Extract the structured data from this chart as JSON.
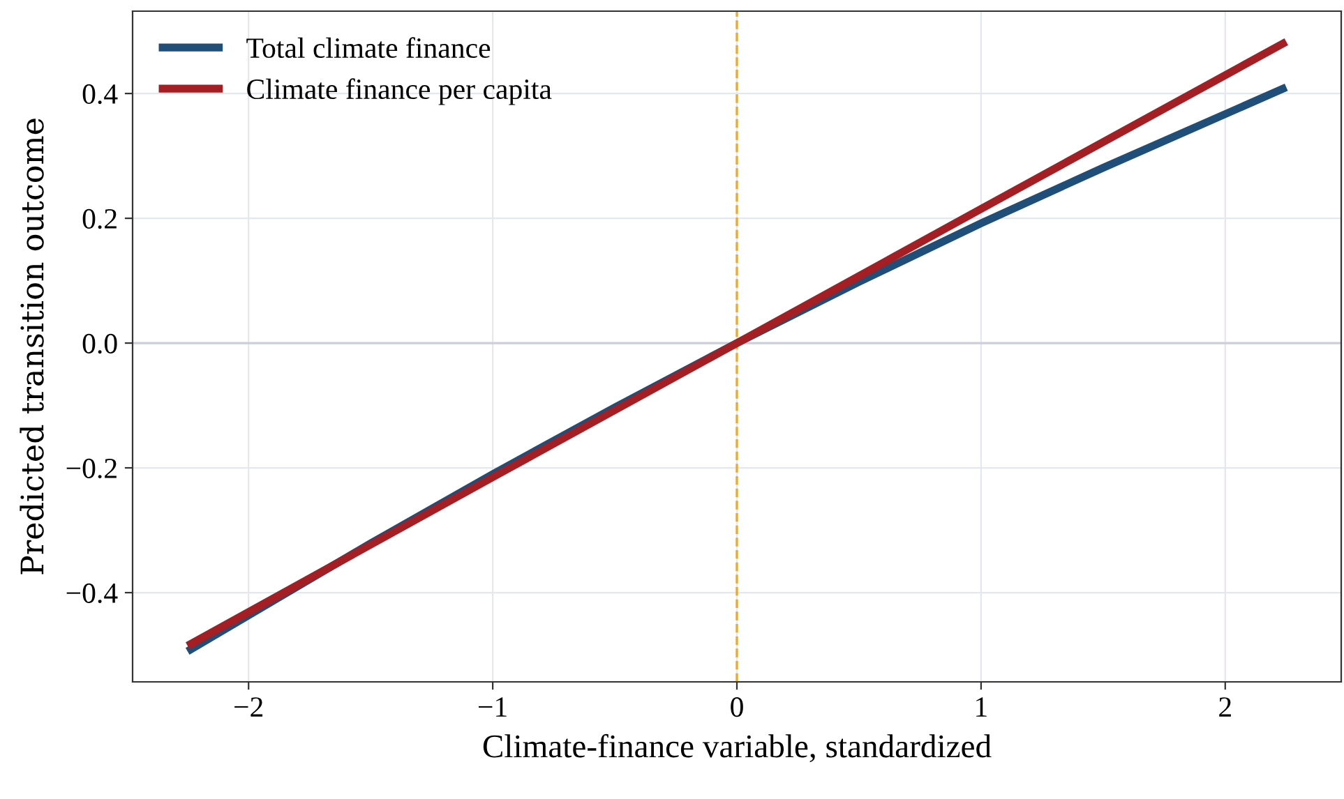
{
  "chart_data": {
    "type": "line",
    "xlabel": "Climate-finance variable, standardized",
    "ylabel": "Predicted transition outcome",
    "xlim": [
      -2.475,
      2.475
    ],
    "xticks": [
      {
        "value": -2,
        "label": "−2"
      },
      {
        "value": -1,
        "label": "−1"
      },
      0,
      1,
      2
    ],
    "ylim": [
      -0.543,
      0.532
    ],
    "yticks": [
      {
        "value": -0.4,
        "label": "−0.4"
      },
      {
        "value": -0.2,
        "label": "−0.2"
      },
      {
        "value": 0.0,
        "label": "0.0"
      },
      {
        "value": 0.2,
        "label": "0.2"
      },
      {
        "value": 0.4,
        "label": "0.4"
      }
    ],
    "grid": true,
    "legend": "top left",
    "line_style": "solid",
    "marker": "none",
    "series": [
      {
        "name": "Total climate finance",
        "color": "#1f4e79",
        "x": [
          -2.25,
          -1.5,
          -1,
          -0.5,
          0,
          0.5,
          1,
          1.5,
          2.25
        ],
        "values": [
          -0.494,
          -0.321,
          -0.21,
          -0.103,
          0,
          0.098,
          0.192,
          0.281,
          0.41
        ]
      },
      {
        "name": "Climate finance per capita",
        "color": "#a31f24",
        "x": [
          -2.25,
          -1,
          0,
          1,
          2.25
        ],
        "values": [
          -0.485,
          -0.215,
          0,
          0.215,
          0.483
        ]
      }
    ],
    "ref_lines": [
      {
        "axis": "x",
        "value": 0,
        "color": "#f5a623",
        "line_style": "dashed"
      },
      {
        "axis": "y",
        "value": 0,
        "color": "#c9d0dc",
        "line_style": "solid"
      }
    ]
  }
}
